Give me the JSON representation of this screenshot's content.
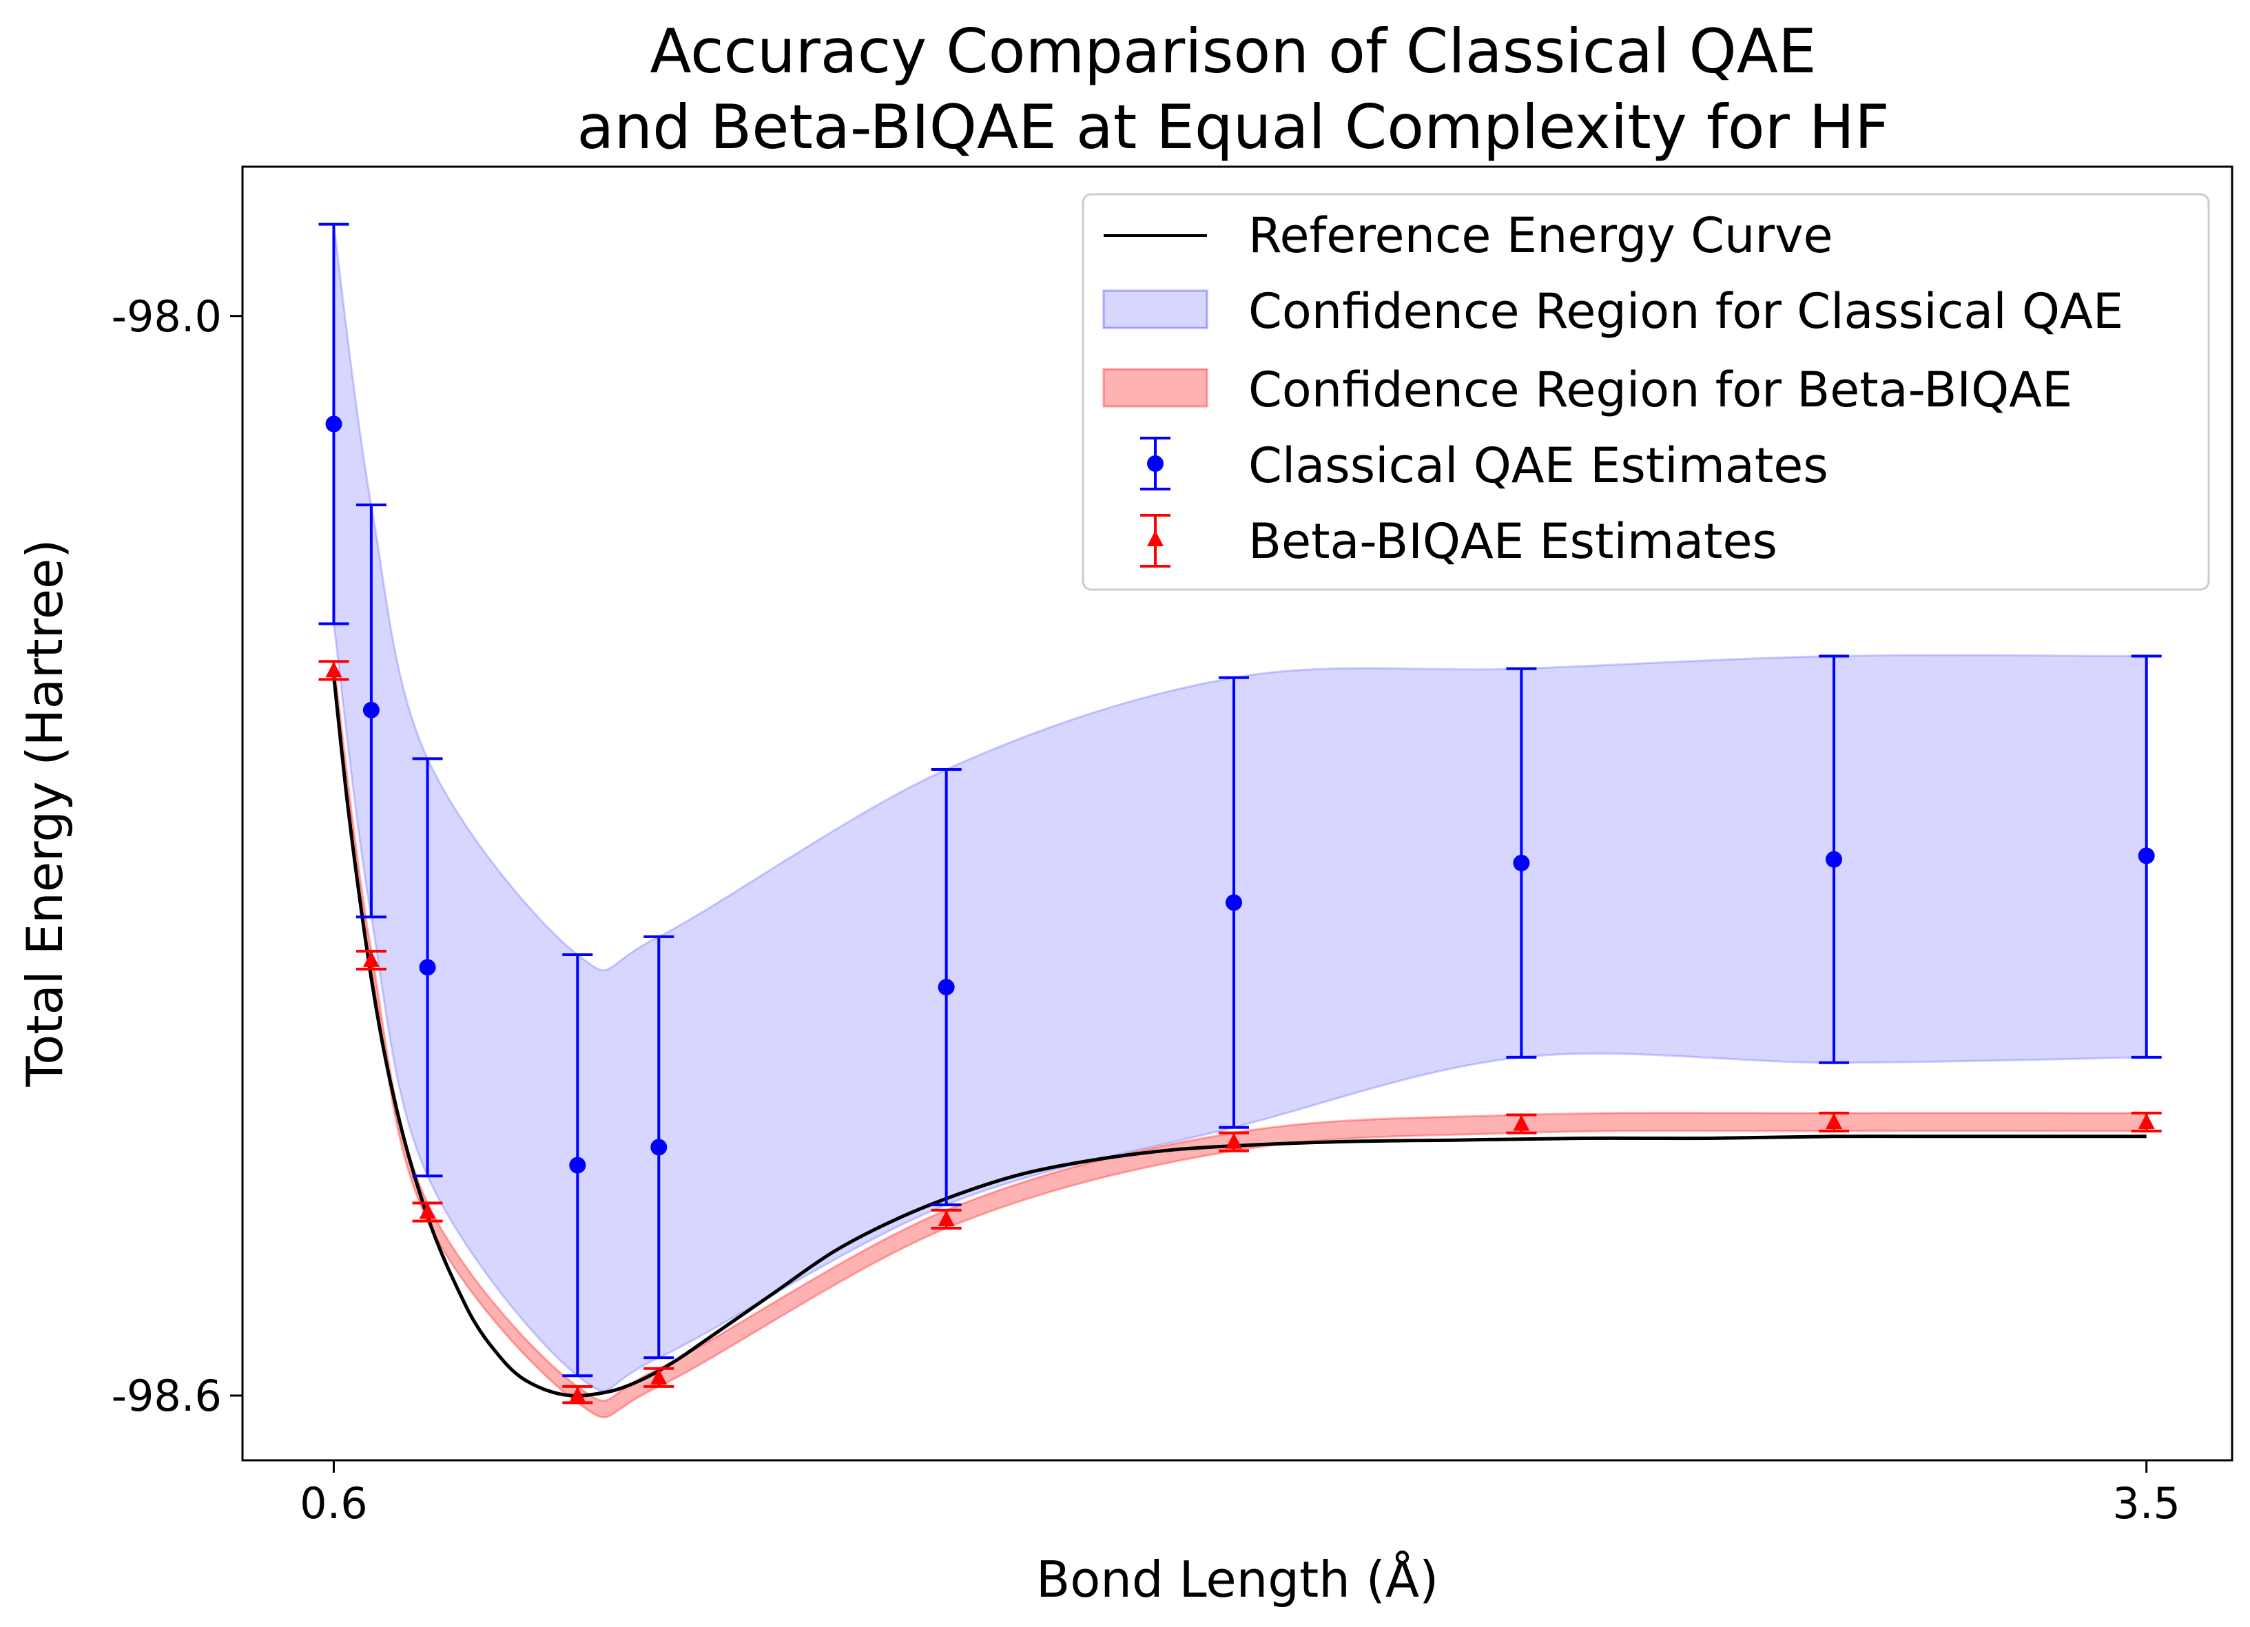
{
  "chart_data": {
    "type": "line",
    "title_lines": [
      "Accuracy Comparison of Classical QAE",
      "and Beta-BIQAE at Equal Complexity for HF"
    ],
    "xlabel": "Bond Length (Å)",
    "ylabel": "Total Energy (Hartree)",
    "xlim": [
      0.454,
      3.637
    ],
    "ylim": [
      -98.636,
      -97.917
    ],
    "xticks": [
      0.6,
      3.5
    ],
    "xtick_labels": [
      "0.6",
      "3.5"
    ],
    "yticks": [
      -98.0,
      -98.6
    ],
    "ytick_labels": [
      "-98.0",
      "-98.6"
    ],
    "grid": false,
    "legend_position": "top-right",
    "legend": [
      {
        "label": "Reference Energy Curve",
        "kind": "line",
        "color": "#000000"
      },
      {
        "label": "Confidence Region for Classical QAE",
        "kind": "patch",
        "color": "#0000ff"
      },
      {
        "label": "Confidence Region for Beta-BIQAE",
        "kind": "patch",
        "color": "#ff0000"
      },
      {
        "label": "Classical QAE Estimates",
        "kind": "errorbar-circle",
        "color": "#0000ff"
      },
      {
        "label": "Beta-BIQAE Estimates",
        "kind": "errorbar-triangle",
        "color": "#ff0000"
      }
    ],
    "reference_curve": {
      "name": "Reference Energy Curve",
      "color": "#000000",
      "x": [
        0.6,
        0.62,
        0.64,
        0.66,
        0.68,
        0.7,
        0.72,
        0.74,
        0.76,
        0.78,
        0.8,
        0.82,
        0.84,
        0.86,
        0.88,
        0.9,
        0.92,
        0.94,
        0.96,
        0.98,
        1.0,
        1.05,
        1.1,
        1.15,
        1.2,
        1.3,
        1.4,
        1.5,
        1.6,
        1.7,
        1.8,
        1.9,
        2.0,
        2.2,
        2.4,
        2.6,
        2.8,
        3.0,
        3.2,
        3.5
      ],
      "y": [
        -98.2,
        -98.265,
        -98.32,
        -98.368,
        -98.408,
        -98.44,
        -98.467,
        -98.49,
        -98.51,
        -98.527,
        -98.542,
        -98.556,
        -98.567,
        -98.576,
        -98.584,
        -98.59,
        -98.594,
        -98.597,
        -98.599,
        -98.6,
        -98.6,
        -98.597,
        -98.59,
        -98.58,
        -98.568,
        -98.544,
        -98.52,
        -98.502,
        -98.488,
        -98.477,
        -98.47,
        -98.465,
        -98.462,
        -98.459,
        -98.458,
        -98.457,
        -98.457,
        -98.456,
        -98.456,
        -98.456
      ]
    },
    "qae_estimates": {
      "name": "Classical QAE Estimates",
      "color": "#0000ff",
      "x": [
        0.6,
        0.66,
        0.75,
        0.99,
        1.12,
        1.58,
        2.04,
        2.5,
        3.0,
        3.5
      ],
      "y": [
        -98.06,
        -98.219,
        -98.362,
        -98.472,
        -98.462,
        -98.373,
        -98.326,
        -98.304,
        -98.302,
        -98.3
      ],
      "lower": [
        -98.171,
        -98.334,
        -98.478,
        -98.589,
        -98.579,
        -98.494,
        -98.451,
        -98.412,
        -98.415,
        -98.412
      ],
      "upper": [
        -97.949,
        -98.105,
        -98.246,
        -98.355,
        -98.345,
        -98.252,
        -98.201,
        -98.196,
        -98.189,
        -98.189
      ]
    },
    "biqae_estimates": {
      "name": "Beta-BIQAE Estimates",
      "color": "#ff0000",
      "x": [
        0.6,
        0.66,
        0.75,
        0.99,
        1.12,
        1.58,
        2.04,
        2.5,
        3.0,
        3.5
      ],
      "y": [
        -98.197,
        -98.358,
        -98.498,
        -98.6,
        -98.59,
        -98.502,
        -98.459,
        -98.449,
        -98.448,
        -98.448
      ],
      "lower": [
        -98.202,
        -98.363,
        -98.503,
        -98.604,
        -98.595,
        -98.507,
        -98.464,
        -98.454,
        -98.453,
        -98.453
      ],
      "upper": [
        -98.192,
        -98.353,
        -98.493,
        -98.595,
        -98.585,
        -98.497,
        -98.454,
        -98.444,
        -98.443,
        -98.443
      ]
    }
  }
}
